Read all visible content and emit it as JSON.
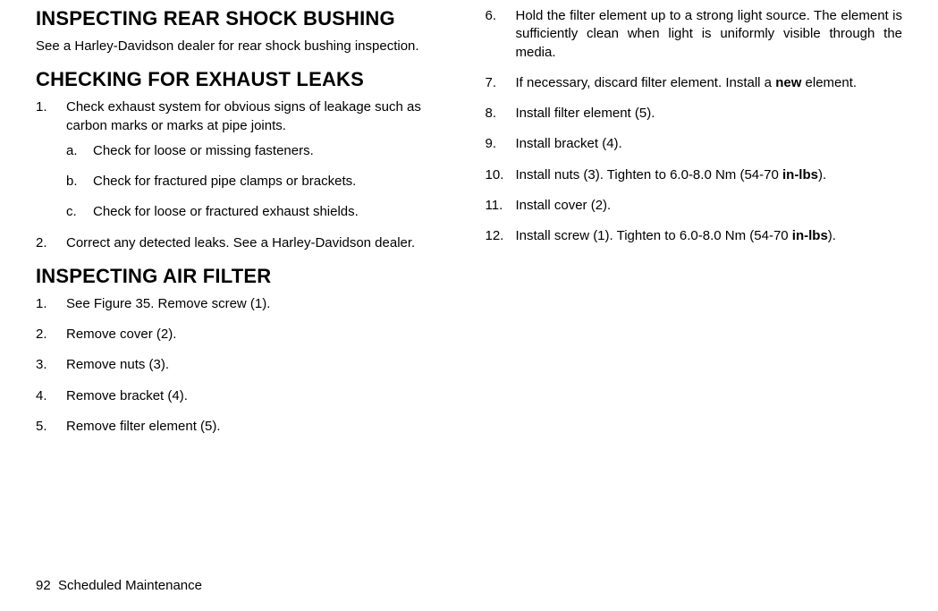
{
  "leftColumn": {
    "heading1": "INSPECTING REAR SHOCK BUSHING",
    "para1": "See a Harley-Davidson dealer for rear shock bushing inspec­tion.",
    "heading2": "CHECKING FOR EXHAUST LEAKS",
    "exhaust": [
      {
        "num": "1.",
        "text": "Check exhaust system for obvious signs of leakage such as carbon marks or marks at pipe joints.",
        "sub": [
          {
            "letter": "a.",
            "text": "Check for loose or missing fasteners."
          },
          {
            "letter": "b.",
            "text": "Check for fractured pipe clamps or brackets."
          },
          {
            "letter": "c.",
            "text": "Check for loose or fractured exhaust shields."
          }
        ]
      },
      {
        "num": "2.",
        "text": "Correct any detected leaks. See a Harley-Davidson dealer."
      }
    ],
    "heading3": "INSPECTING AIR FILTER",
    "airFilter": [
      {
        "num": "1.",
        "text": "See Figure 35. Remove screw (1)."
      },
      {
        "num": "2.",
        "text": "Remove cover (2)."
      },
      {
        "num": "3.",
        "text": "Remove nuts (3)."
      },
      {
        "num": "4.",
        "text": "Remove bracket (4)."
      },
      {
        "num": "5.",
        "text": "Remove filter element (5)."
      }
    ]
  },
  "rightColumn": {
    "steps": [
      {
        "num": "6.",
        "text": "Hold the filter element up to a strong light source. The element is sufficiently clean when light is uniformly visible through the media."
      },
      {
        "num": "7.",
        "pre": "If necessary, discard filter element. Install a ",
        "bold": "new",
        "post": " element."
      },
      {
        "num": "8.",
        "text": "Install filter element (5)."
      },
      {
        "num": "9.",
        "text": "Install bracket (4)."
      },
      {
        "num": "10.",
        "pre": "Install nuts (3). Tighten to 6.0-8.0 Nm (54-70 ",
        "bold": "in-lbs",
        "post": ")."
      },
      {
        "num": "11.",
        "text": "Install cover (2)."
      },
      {
        "num": "12.",
        "pre": "Install screw (1). Tighten to 6.0-8.0 Nm (54-70 ",
        "bold": "in-lbs",
        "post": ")."
      }
    ]
  },
  "footer": {
    "pageNumber": "92",
    "sectionTitle": "Scheduled Maintenance"
  }
}
